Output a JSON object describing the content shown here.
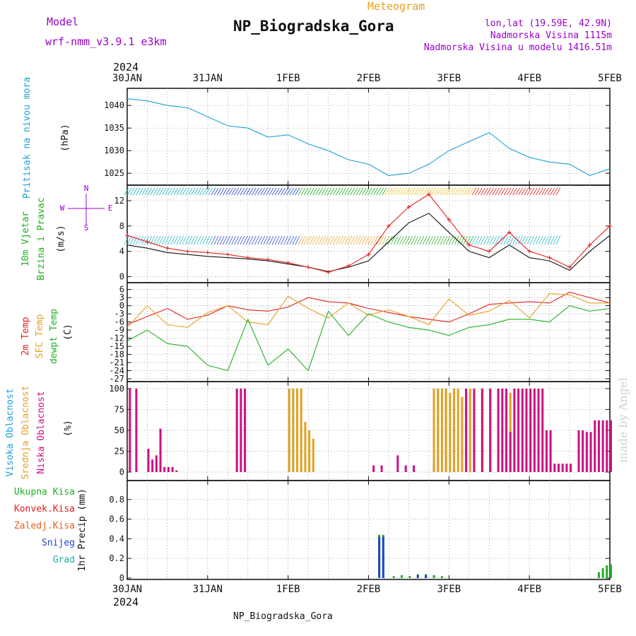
{
  "header": {
    "model_label": "Model",
    "model_name": "wrf-nmm_v3.9.1 e3km",
    "meteogram_label": "Meteogram",
    "station_title": "NP_Biogradska_Gora",
    "lonlat": "lon,lat (19.59E, 42.9N)",
    "elevation": "Nadmorska Visina 1115m",
    "model_elevation": "Nadmorska Visina u modelu 1416.51m",
    "footer_station": "NP_Biogradska_Gora",
    "watermark": "made by Angel"
  },
  "colors": {
    "purple": "#9900cc",
    "orange": "#e8a020",
    "pressure": "#1f9fd8",
    "green": "#22b022",
    "red": "#e02020",
    "magenta": "#cc1080",
    "blue": "#2244cc",
    "teal": "#20b0a0",
    "watermark": "#c8d8c8"
  },
  "time_axis": {
    "year": "2024",
    "labels": [
      "30JAN",
      "31JAN",
      "1FEB",
      "2FEB",
      "3FEB",
      "4FEB",
      "5FEB"
    ]
  },
  "chart_data": [
    {
      "id": "pressure",
      "type": "line",
      "ylabel": [
        "Pritisak na nivou mora",
        "(hPa)"
      ],
      "yticks": [
        1025,
        1030,
        1035,
        1040
      ],
      "ylim": [
        1023,
        1043
      ],
      "grid": true,
      "series": [
        {
          "color": "#1f9fd8",
          "x": [
            0,
            0.25,
            0.5,
            0.75,
            1.0,
            1.25,
            1.5,
            1.75,
            2.0,
            2.25,
            2.5,
            2.75,
            3.0,
            3.25,
            3.5,
            3.75,
            4.0,
            4.25,
            4.5,
            4.75,
            5.0,
            5.25,
            5.5,
            5.75,
            6.0
          ],
          "y": [
            1041.5,
            1041,
            1040,
            1039.5,
            1037.5,
            1035.5,
            1035,
            1033,
            1033.5,
            1031.5,
            1030,
            1028,
            1027,
            1024.5,
            1025,
            1027,
            1030,
            1032,
            1034,
            1030.5,
            1028.5,
            1027.5,
            1027,
            1024.5,
            1026
          ]
        }
      ]
    },
    {
      "id": "wind",
      "type": "line",
      "ylabel": [
        "10m Vjetar",
        "Brzina i Pravac",
        "(m/s)"
      ],
      "compass": [
        "N",
        "E",
        "W",
        "S"
      ],
      "yticks": [
        0,
        4,
        8,
        12
      ],
      "ylim": [
        -0.5,
        14
      ],
      "grid": true,
      "series": [
        {
          "name": "Model speed",
          "color": "#111111",
          "x": [
            0,
            0.25,
            0.5,
            0.75,
            1.0,
            1.25,
            1.5,
            1.75,
            2.0,
            2.25,
            2.5,
            2.75,
            3.0,
            3.25,
            3.5,
            3.75,
            4.0,
            4.25,
            4.5,
            4.75,
            5.0,
            5.25,
            5.5,
            5.75,
            6.0
          ],
          "y": [
            5,
            4.5,
            3.8,
            3.5,
            3.2,
            3.0,
            2.8,
            2.5,
            2.0,
            1.5,
            0.8,
            1.5,
            2.5,
            5.5,
            8.5,
            10,
            7,
            4,
            3,
            5,
            3,
            2.5,
            1.0,
            4,
            6.5
          ]
        },
        {
          "name": "Gust",
          "color": "#e02020",
          "marker": "plus",
          "x": [
            0,
            0.25,
            0.5,
            0.75,
            1.0,
            1.25,
            1.5,
            1.75,
            2.0,
            2.25,
            2.5,
            2.75,
            3.0,
            3.25,
            3.5,
            3.75,
            4.0,
            4.25,
            4.5,
            4.75,
            5.0,
            5.25,
            5.5,
            5.75,
            6.0
          ],
          "y": [
            6.5,
            5.5,
            4.5,
            4.0,
            3.8,
            3.5,
            3.0,
            2.7,
            2.2,
            1.5,
            0.7,
            1.7,
            3.5,
            8,
            11,
            13,
            9,
            5,
            4,
            7,
            4,
            3,
            1.5,
            5,
            8
          ]
        }
      ],
      "barbs": {
        "upper_row_colors": [
          "#20b0c0",
          "#2244cc",
          "#22b022",
          "#e8c020",
          "#e02020"
        ],
        "lower_row_colors": [
          "#20b0c0",
          "#2244cc",
          "#e8a020",
          "#22b022"
        ]
      }
    },
    {
      "id": "temperature",
      "type": "line",
      "ylabel": [
        "2m Temp",
        "SFC Temp",
        "dewpt Temp",
        "(C)"
      ],
      "yticks": [
        6,
        3,
        0,
        -3,
        -6,
        -9,
        -12,
        -15,
        -18,
        -21,
        -24,
        -27
      ],
      "ylim": [
        -27,
        8
      ],
      "grid": true,
      "series": [
        {
          "name": "2m Temp",
          "color": "#e02020",
          "x": [
            0,
            0.25,
            0.5,
            0.75,
            1.0,
            1.25,
            1.5,
            1.75,
            2.0,
            2.25,
            2.5,
            2.75,
            3.0,
            3.25,
            3.5,
            3.75,
            4.0,
            4.25,
            4.5,
            4.75,
            5.0,
            5.25,
            5.5,
            5.75,
            6.0
          ],
          "y": [
            -7,
            -4,
            -1,
            -5,
            -3.5,
            0,
            -1.5,
            -2,
            -0.5,
            3,
            1.5,
            1,
            -1,
            -2.5,
            -4,
            -5,
            -6,
            -3,
            0.5,
            1,
            1.5,
            1,
            5,
            3,
            1
          ]
        },
        {
          "name": "SFC Temp",
          "color": "#e8a020",
          "x": [
            0,
            0.25,
            0.5,
            0.75,
            1.0,
            1.25,
            1.5,
            1.75,
            2.0,
            2.25,
            2.5,
            2.75,
            3.0,
            3.25,
            3.5,
            3.75,
            4.0,
            4.25,
            4.5,
            4.75,
            5.0,
            5.25,
            5.5,
            5.75,
            6.0
          ],
          "y": [
            -8,
            0,
            -7,
            -8,
            -2.5,
            0,
            -6,
            -7,
            3.5,
            -1,
            -4.5,
            1,
            -3.5,
            -1.5,
            -4,
            -7,
            2.5,
            -3.5,
            -2,
            2,
            -4.5,
            4.5,
            4,
            1,
            1
          ]
        },
        {
          "name": "dewpt Temp",
          "color": "#22b022",
          "x": [
            0,
            0.25,
            0.5,
            0.75,
            1.0,
            1.25,
            1.5,
            1.75,
            2.0,
            2.25,
            2.5,
            2.75,
            3.0,
            3.25,
            3.5,
            3.75,
            4.0,
            4.25,
            4.5,
            4.75,
            5.0,
            5.25,
            5.5,
            5.75,
            6.0
          ],
          "y": [
            -13,
            -9,
            -14,
            -15,
            -22,
            -24,
            -5,
            -22,
            -16,
            -24,
            -2,
            -11,
            -3,
            -6,
            -8,
            -9,
            -11,
            -8,
            -7,
            -5,
            -5,
            -6,
            0,
            -2,
            -1
          ]
        }
      ]
    },
    {
      "id": "cloud",
      "type": "bar",
      "ylabel": [
        "Visoka Oblacnost",
        "Srednja Oblacnost",
        "Niska Oblacnost",
        "(%)"
      ],
      "yticks": [
        0,
        25,
        50,
        75,
        100
      ],
      "ylim": [
        0,
        105
      ],
      "grid": true,
      "series": [
        {
          "name": "Visoka Oblacnost",
          "color": "#1f9fd8",
          "x": [
            2.0,
            2.05,
            3.8,
            3.85,
            3.9,
            3.95,
            4.05
          ],
          "y": [
            100,
            100,
            15,
            100,
            100,
            100,
            90
          ]
        },
        {
          "name": "Srednja Oblacnost",
          "color": "#e8a020",
          "x": [
            2.0,
            2.05,
            2.1,
            2.15,
            2.2,
            2.25,
            2.3,
            3.8,
            3.85,
            3.9,
            3.95,
            4.0,
            4.05,
            4.1,
            4.15,
            4.2,
            4.25,
            4.3,
            4.4,
            4.5,
            4.6,
            4.7,
            4.75,
            4.8
          ],
          "y": [
            100,
            100,
            100,
            100,
            60,
            50,
            40,
            100,
            100,
            100,
            100,
            95,
            100,
            100,
            90,
            100,
            100,
            100,
            100,
            100,
            100,
            100,
            95,
            100
          ]
        },
        {
          "name": "Niska Oblacnost",
          "color": "#cc1080",
          "x": [
            0.02,
            0.1,
            0.25,
            0.3,
            0.35,
            0.4,
            0.45,
            0.5,
            0.55,
            0.6,
            1.35,
            1.4,
            1.45,
            3.05,
            3.15,
            3.35,
            3.45,
            3.55,
            4.2,
            4.3,
            4.4,
            4.5,
            4.6,
            4.65,
            4.7,
            4.75,
            4.8,
            4.85,
            4.9,
            4.95,
            5.0,
            5.05,
            5.1,
            5.15,
            5.2,
            5.25,
            5.3,
            5.35,
            5.4,
            5.45,
            5.5,
            5.6,
            5.65,
            5.7,
            5.75,
            5.8,
            5.85,
            5.9,
            5.95,
            6.0
          ],
          "y": [
            100,
            100,
            28,
            15,
            20,
            52,
            6,
            6,
            6,
            2,
            100,
            100,
            100,
            8,
            8,
            20,
            8,
            8,
            100,
            100,
            100,
            100,
            100,
            100,
            100,
            48,
            100,
            100,
            100,
            100,
            100,
            100,
            100,
            100,
            50,
            50,
            10,
            10,
            10,
            10,
            10,
            50,
            50,
            48,
            48,
            62,
            62,
            62,
            62,
            62
          ]
        }
      ]
    },
    {
      "id": "precip",
      "type": "bar",
      "ylabel": [
        "1hr Precip (mm)"
      ],
      "legend": [
        "Ukupna Kisa",
        "Konvek.Kisa",
        "Zaledj.Kisa",
        "Snijeg",
        "Grad"
      ],
      "yticks": [
        0,
        0.2,
        0.4,
        0.6,
        0.8
      ],
      "ylim": [
        0,
        0.95
      ],
      "grid": true,
      "series": [
        {
          "name": "Ukupna Kisa",
          "color": "#22b022",
          "x": [
            3.12,
            3.17,
            3.3,
            3.4,
            3.5,
            3.6,
            3.7,
            3.8,
            3.9,
            5.85,
            5.9,
            5.95,
            6.0
          ],
          "y": [
            0.44,
            0.44,
            0.02,
            0.03,
            0.02,
            0.04,
            0.04,
            0.03,
            0.02,
            0.06,
            0.1,
            0.13,
            0.14
          ]
        },
        {
          "name": "Snijeg",
          "color": "#2244cc",
          "x": [
            3.12,
            3.17,
            3.6,
            3.7
          ],
          "y": [
            0.42,
            0.42,
            0.03,
            0.03
          ]
        },
        {
          "name": "Grad",
          "color": "#20b0a0",
          "x": [
            3.12
          ],
          "y": [
            0.0
          ]
        }
      ]
    }
  ]
}
